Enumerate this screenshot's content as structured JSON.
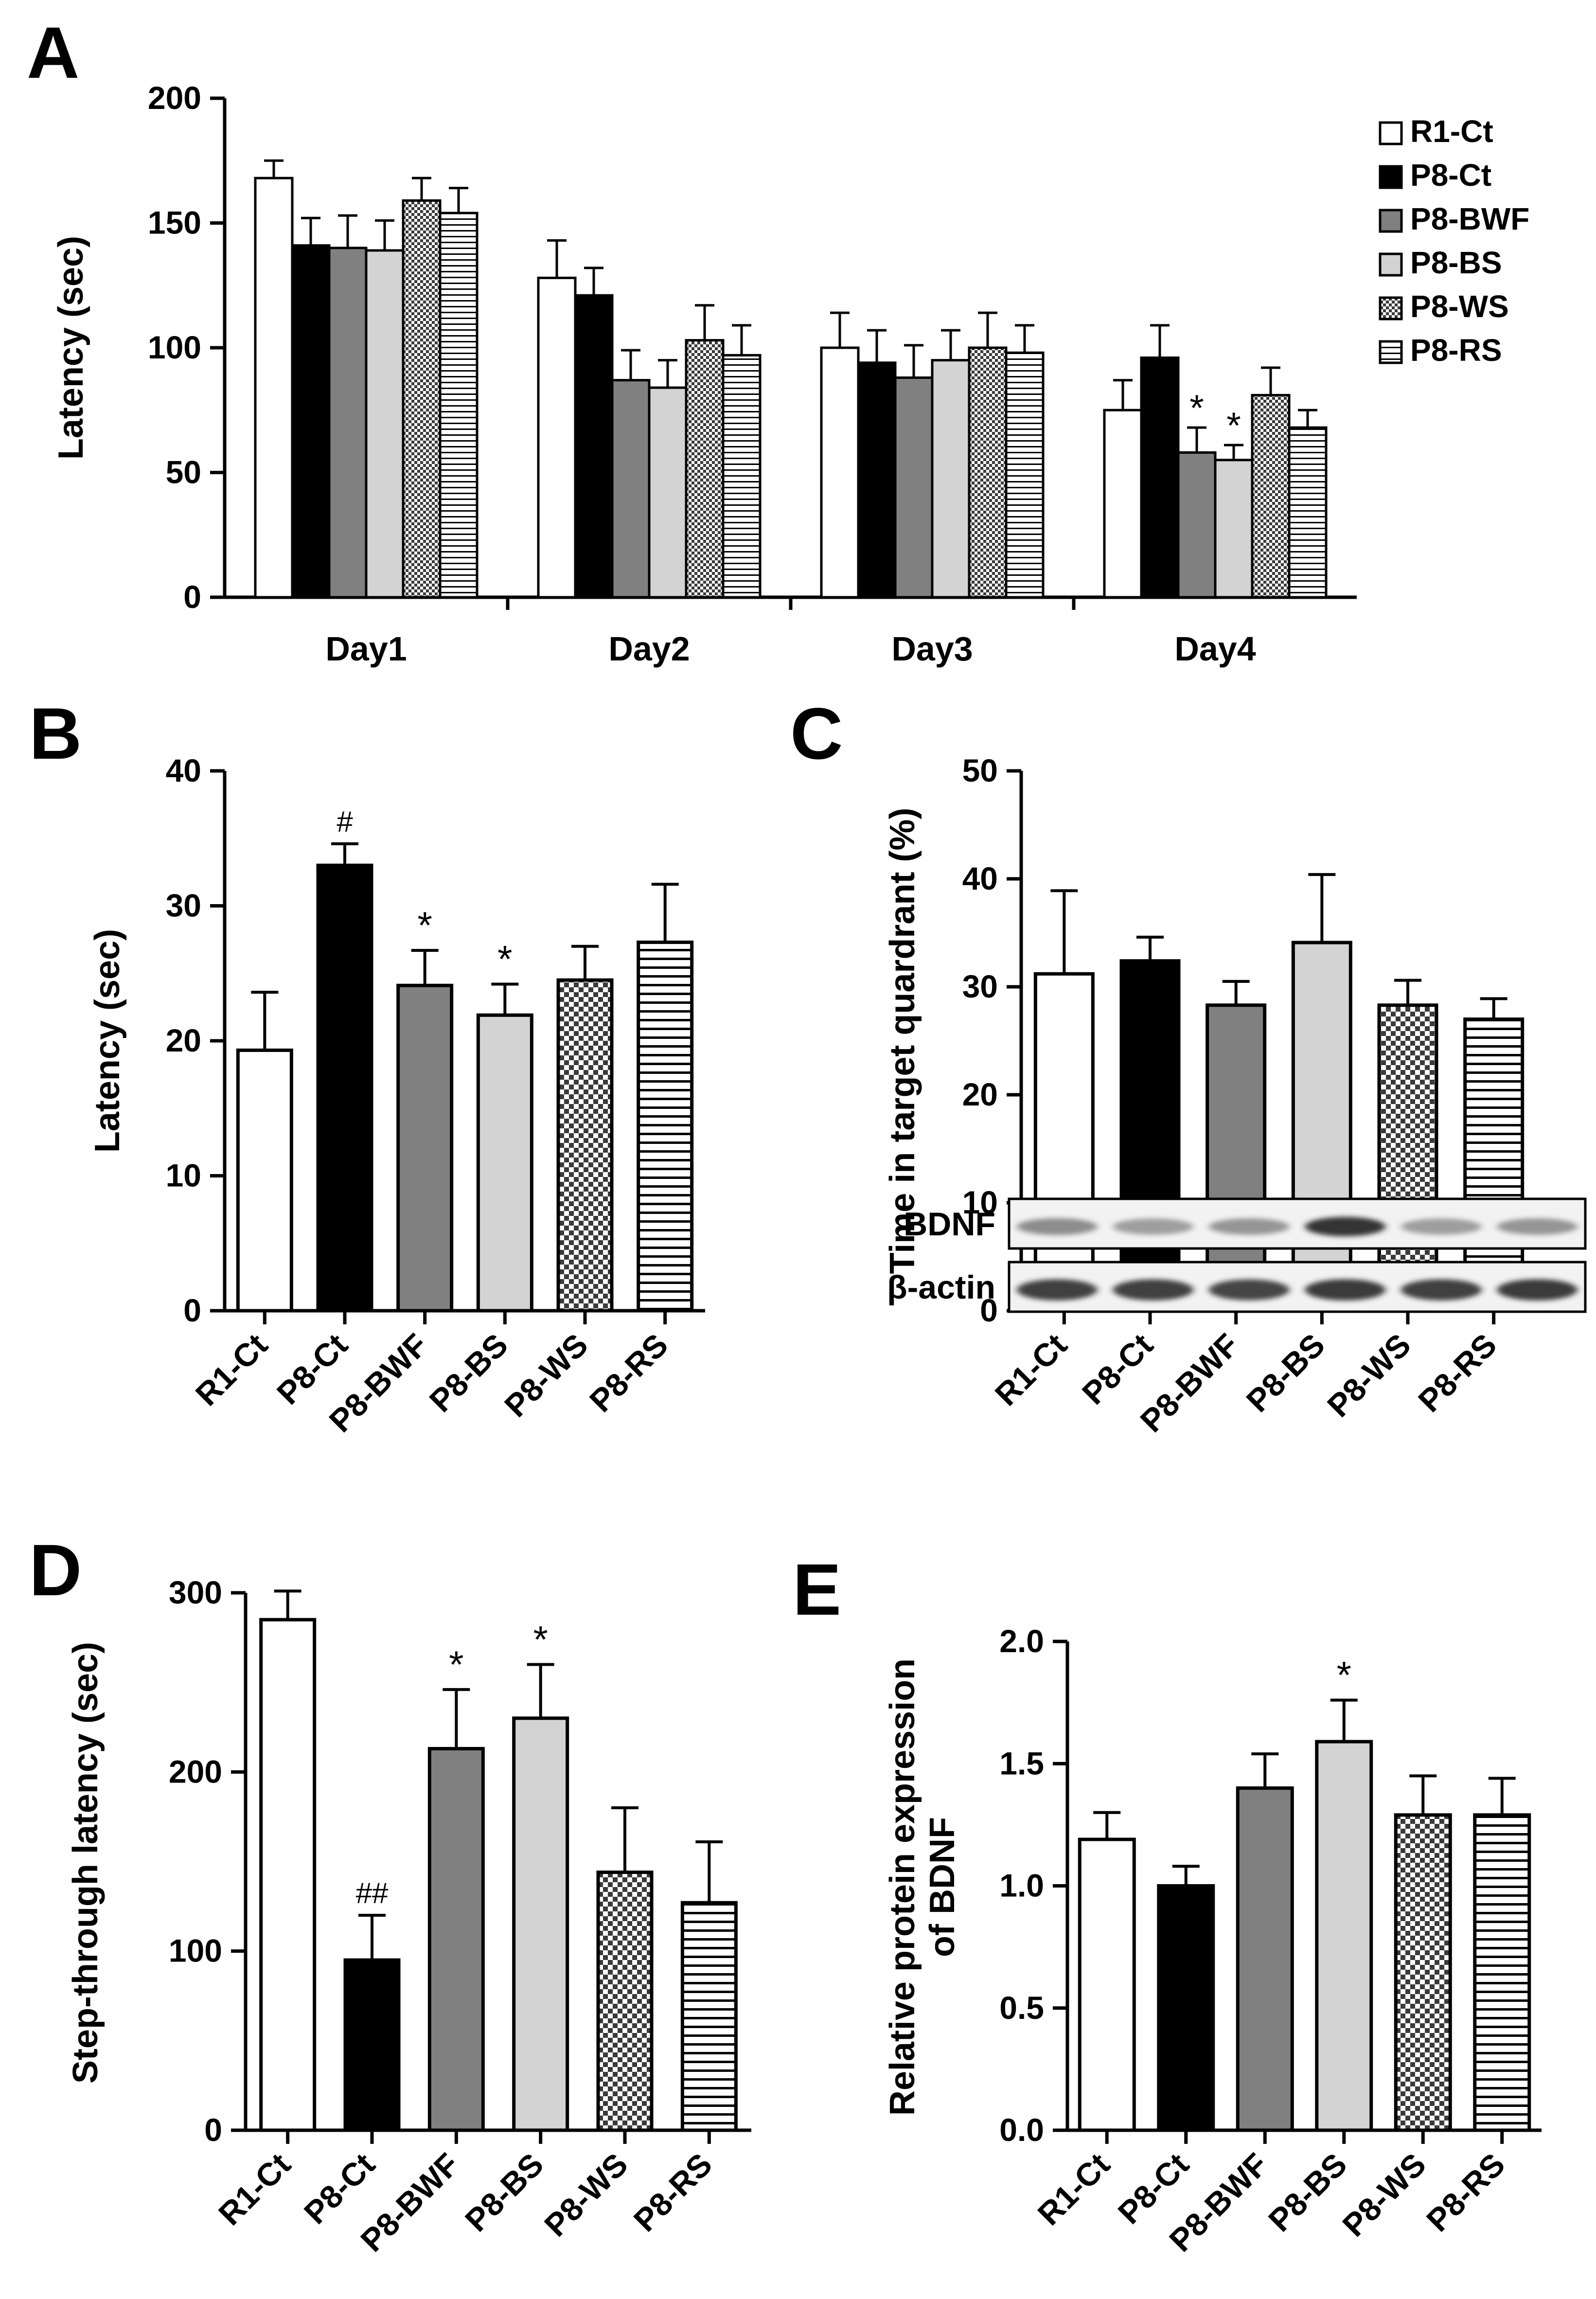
{
  "chart_data": [
    {
      "panel": "A",
      "type": "bar",
      "ylabel": "Latency (sec)",
      "ylim": [
        0,
        200
      ],
      "yticks": [
        0,
        50,
        100,
        150,
        200
      ],
      "categories": [
        "Day1",
        "Day2",
        "Day3",
        "Day4"
      ],
      "legend": [
        "R1-Ct",
        "P8-Ct",
        "P8-BWF",
        "P8-BS",
        "P8-WS",
        "P8-RS"
      ],
      "series": [
        {
          "name": "R1-Ct",
          "values": [
            168,
            128,
            100,
            75
          ],
          "errors": [
            7,
            15,
            14,
            12
          ]
        },
        {
          "name": "P8-Ct",
          "values": [
            141,
            121,
            94,
            96
          ],
          "errors": [
            11,
            11,
            13,
            13
          ]
        },
        {
          "name": "P8-BWF",
          "values": [
            140,
            87,
            88,
            58
          ],
          "errors": [
            13,
            12,
            13,
            10
          ]
        },
        {
          "name": "P8-BS",
          "values": [
            139,
            84,
            95,
            55
          ],
          "errors": [
            12,
            11,
            12,
            6
          ]
        },
        {
          "name": "P8-WS",
          "values": [
            159,
            103,
            100,
            81
          ],
          "errors": [
            9,
            14,
            14,
            11
          ]
        },
        {
          "name": "P8-RS",
          "values": [
            154,
            97,
            98,
            68
          ],
          "errors": [
            10,
            12,
            11,
            7
          ]
        }
      ],
      "annotations": [
        {
          "category": "Day4",
          "series": "P8-BWF",
          "text": "*"
        },
        {
          "category": "Day4",
          "series": "P8-BS",
          "text": "*"
        }
      ]
    },
    {
      "panel": "B",
      "type": "bar",
      "ylabel": "Latency (sec)",
      "ylim": [
        0,
        40
      ],
      "yticks": [
        0,
        10,
        20,
        30,
        40
      ],
      "categories": [
        "R1-Ct",
        "P8-Ct",
        "P8-BWF",
        "P8-BS",
        "P8-WS",
        "P8-RS"
      ],
      "values": [
        19.3,
        33.0,
        24.1,
        21.9,
        24.5,
        27.3
      ],
      "errors": [
        4.3,
        1.6,
        2.6,
        2.3,
        2.5,
        4.3
      ],
      "annotations": [
        "",
        "#",
        "*",
        "*",
        "",
        ""
      ]
    },
    {
      "panel": "C",
      "type": "bar",
      "ylabel": "Time in target quardrant (%)",
      "ylim": [
        0,
        50
      ],
      "yticks": [
        0,
        10,
        20,
        30,
        40,
        50
      ],
      "categories": [
        "R1-Ct",
        "P8-Ct",
        "P8-BWF",
        "P8-BS",
        "P8-WS",
        "P8-RS"
      ],
      "values": [
        31.2,
        32.4,
        28.3,
        34.1,
        28.3,
        27.0
      ],
      "errors": [
        7.7,
        2.2,
        2.2,
        6.3,
        2.3,
        1.9
      ],
      "annotations": [
        "",
        "",
        "",
        "",
        "",
        ""
      ]
    },
    {
      "panel": "D",
      "type": "bar",
      "ylabel": "Step-through latency (sec)",
      "ylim": [
        0,
        300
      ],
      "yticks": [
        0,
        100,
        200,
        300
      ],
      "categories": [
        "R1-Ct",
        "P8-Ct",
        "P8-BWF",
        "P8-BS",
        "P8-WS",
        "P8-RS"
      ],
      "values": [
        285,
        95,
        213,
        230,
        144,
        127
      ],
      "errors": [
        16,
        25,
        33,
        30,
        36,
        34
      ],
      "annotations": [
        "",
        "##",
        "*",
        "*",
        "",
        ""
      ]
    },
    {
      "panel": "E",
      "type": "bar",
      "ylabel": "Relative protein expression of BDNF",
      "ylim": [
        0,
        2.0
      ],
      "yticks": [
        "0.0",
        "0.5",
        "1.0",
        "1.5",
        "2.0"
      ],
      "categories": [
        "R1-Ct",
        "P8-Ct",
        "P8-BWF",
        "P8-BS",
        "P8-WS",
        "P8-RS"
      ],
      "values": [
        1.19,
        1.0,
        1.4,
        1.59,
        1.29,
        1.29
      ],
      "errors": [
        0.11,
        0.08,
        0.14,
        0.17,
        0.16,
        0.15
      ],
      "annotations": [
        "",
        "",
        "",
        "*",
        "",
        ""
      ],
      "blot_labels": [
        "BDNF",
        "β-actin"
      ],
      "blot_intensity": {
        "BDNF": [
          0.55,
          0.45,
          0.5,
          0.95,
          0.45,
          0.5
        ],
        "beta_actin": [
          0.9,
          0.9,
          0.88,
          0.92,
          0.9,
          0.92
        ]
      }
    }
  ],
  "style": {
    "colors": {
      "R1-Ct": "#ffffff",
      "P8-Ct": "#000000",
      "P8-BWF": "#808080",
      "P8-BS": "#d3d3d3",
      "P8-WS": "#777777",
      "P8-RS": "#ffffff"
    },
    "patterns": {
      "P8-WS": "check",
      "P8-RS": "hstripe"
    }
  }
}
